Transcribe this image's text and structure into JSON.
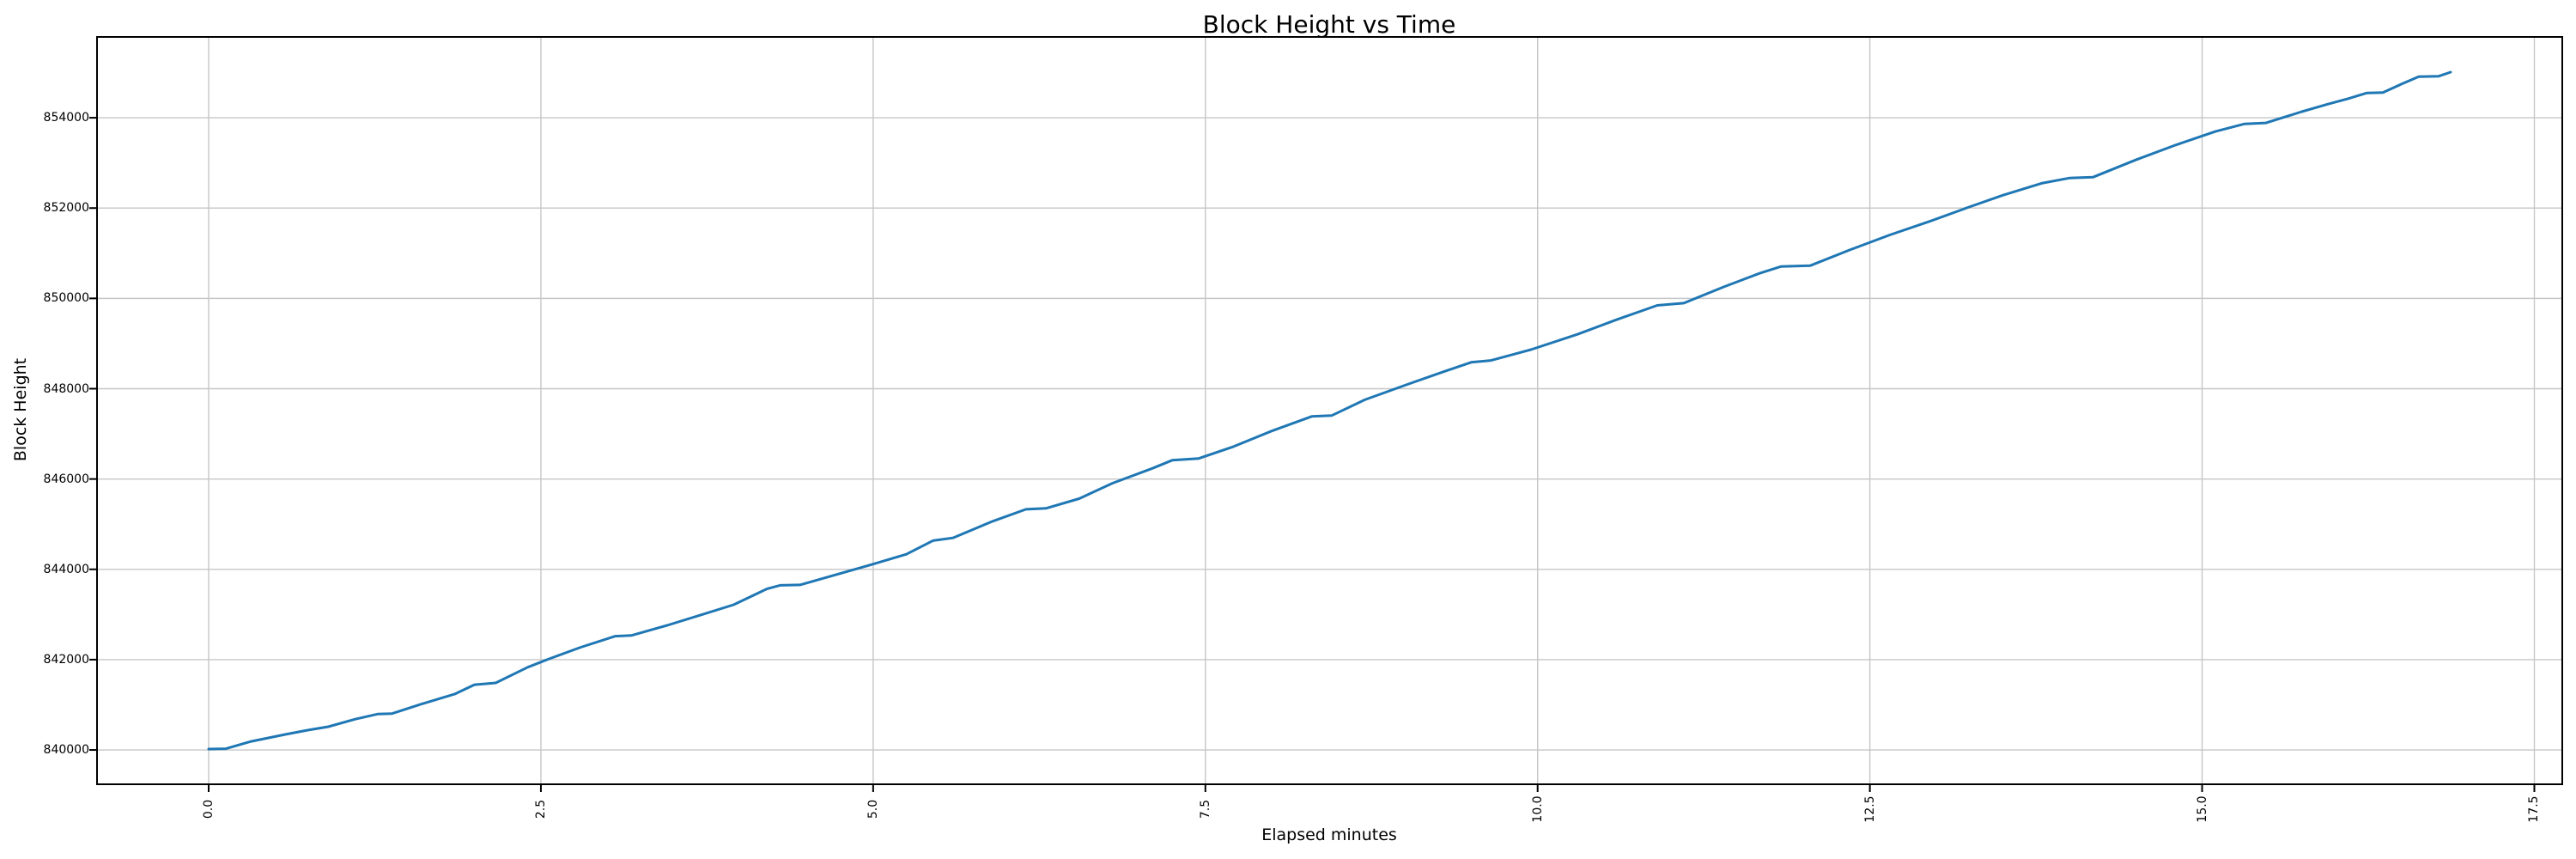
{
  "chart_data": {
    "type": "line",
    "title": "Block Height vs Time",
    "xlabel": "Elapsed minutes",
    "ylabel": "Block Height",
    "grid": true,
    "legend": false,
    "xlim": [
      -0.84,
      17.71
    ],
    "ylim": [
      839240,
      855790
    ],
    "x_ticks": [
      0.0,
      2.5,
      5.0,
      7.5,
      10.0,
      12.5,
      15.0,
      17.5
    ],
    "x_tick_labels": [
      "0.0",
      "2.5",
      "5.0",
      "7.5",
      "10.0",
      "12.5",
      "15.0",
      "17.5"
    ],
    "y_ticks": [
      840000,
      842000,
      844000,
      846000,
      848000,
      850000,
      852000,
      854000
    ],
    "y_tick_labels": [
      "840000",
      "842000",
      "844000",
      "846000",
      "848000",
      "850000",
      "852000",
      "854000"
    ],
    "colors": {
      "line": "#1f77b4",
      "grid": "#c6c6c6",
      "spine": "#000000",
      "background": "#ffffff"
    },
    "series": [
      {
        "name": "block-height",
        "points": [
          [
            0.0,
            840019
          ],
          [
            0.13,
            840028
          ],
          [
            0.32,
            840190
          ],
          [
            0.58,
            840345
          ],
          [
            0.75,
            840440
          ],
          [
            0.9,
            840515
          ],
          [
            1.1,
            840680
          ],
          [
            1.27,
            840795
          ],
          [
            1.38,
            840805
          ],
          [
            1.6,
            841015
          ],
          [
            1.85,
            841235
          ],
          [
            2.0,
            841445
          ],
          [
            2.16,
            841485
          ],
          [
            2.4,
            841830
          ],
          [
            2.56,
            842016
          ],
          [
            2.8,
            842275
          ],
          [
            3.06,
            842520
          ],
          [
            3.18,
            842535
          ],
          [
            3.45,
            842760
          ],
          [
            3.7,
            842985
          ],
          [
            3.95,
            843215
          ],
          [
            4.2,
            843565
          ],
          [
            4.3,
            843645
          ],
          [
            4.45,
            843655
          ],
          [
            4.7,
            843865
          ],
          [
            5.0,
            844115
          ],
          [
            5.25,
            844335
          ],
          [
            5.45,
            844635
          ],
          [
            5.6,
            844695
          ],
          [
            5.9,
            845065
          ],
          [
            6.15,
            845330
          ],
          [
            6.3,
            845350
          ],
          [
            6.55,
            845565
          ],
          [
            6.8,
            845905
          ],
          [
            7.1,
            846235
          ],
          [
            7.25,
            846415
          ],
          [
            7.45,
            846455
          ],
          [
            7.7,
            846705
          ],
          [
            8.0,
            847065
          ],
          [
            8.3,
            847385
          ],
          [
            8.45,
            847405
          ],
          [
            8.7,
            847755
          ],
          [
            9.0,
            848075
          ],
          [
            9.3,
            848385
          ],
          [
            9.5,
            848585
          ],
          [
            9.65,
            848625
          ],
          [
            9.95,
            848865
          ],
          [
            10.3,
            849205
          ],
          [
            10.6,
            849535
          ],
          [
            10.9,
            849845
          ],
          [
            11.1,
            849895
          ],
          [
            11.4,
            850255
          ],
          [
            11.67,
            850555
          ],
          [
            11.83,
            850705
          ],
          [
            12.05,
            850725
          ],
          [
            12.35,
            851075
          ],
          [
            12.65,
            851405
          ],
          [
            12.95,
            851705
          ],
          [
            13.24,
            852015
          ],
          [
            13.5,
            852285
          ],
          [
            13.8,
            852555
          ],
          [
            14.0,
            852665
          ],
          [
            14.18,
            852685
          ],
          [
            14.5,
            853065
          ],
          [
            14.8,
            853395
          ],
          [
            15.1,
            853695
          ],
          [
            15.32,
            853865
          ],
          [
            15.48,
            853885
          ],
          [
            15.75,
            854135
          ],
          [
            15.95,
            854305
          ],
          [
            16.1,
            854425
          ],
          [
            16.24,
            854550
          ],
          [
            16.36,
            854560
          ],
          [
            16.5,
            854745
          ],
          [
            16.63,
            854910
          ],
          [
            16.78,
            854920
          ],
          [
            16.87,
            855010
          ]
        ]
      }
    ]
  }
}
